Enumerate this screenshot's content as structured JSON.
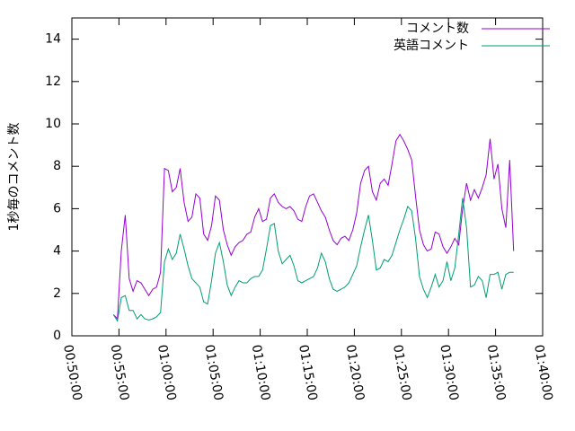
{
  "chart_data": {
    "type": "line",
    "ylabel": "1秒毎のコメント数",
    "x": [
      3265,
      3290,
      3315,
      3340,
      3365,
      3390,
      3415,
      3440,
      3465,
      3490,
      3515,
      3540,
      3565,
      3590,
      3615,
      3640,
      3665,
      3690,
      3715,
      3740,
      3765,
      3790,
      3815,
      3840,
      3865,
      3890,
      3915,
      3940,
      3965,
      3990,
      4015,
      4040,
      4065,
      4090,
      4115,
      4140,
      4165,
      4190,
      4215,
      4240,
      4265,
      4290,
      4315,
      4340,
      4365,
      4390,
      4415,
      4440,
      4465,
      4490,
      4515,
      4540,
      4565,
      4590,
      4615,
      4640,
      4665,
      4690,
      4715,
      4740,
      4765,
      4790,
      4815,
      4840,
      4865,
      4890,
      4915,
      4940,
      4965,
      4990,
      5015,
      5040,
      5065,
      5090,
      5115,
      5140,
      5165,
      5190,
      5215,
      5240,
      5265,
      5290,
      5315,
      5340,
      5365,
      5390,
      5415,
      5440,
      5465,
      5490,
      5515,
      5540,
      5565,
      5590,
      5615,
      5640,
      5665,
      5690,
      5715,
      5740,
      5765,
      5790,
      5815
    ],
    "series": [
      {
        "name": "コメント数",
        "color": "#9400d3",
        "values": [
          1.0,
          0.8,
          4.0,
          5.7,
          2.7,
          2.1,
          2.6,
          2.5,
          2.2,
          1.9,
          2.2,
          2.3,
          3.0,
          7.9,
          7.8,
          6.8,
          7.0,
          7.9,
          6.3,
          5.4,
          5.6,
          6.7,
          6.5,
          4.8,
          4.5,
          5.2,
          6.6,
          6.4,
          5.0,
          4.3,
          3.8,
          4.2,
          4.4,
          4.5,
          4.8,
          4.9,
          5.6,
          6.0,
          5.4,
          5.5,
          6.5,
          6.7,
          6.3,
          6.1,
          6.0,
          6.1,
          5.9,
          5.5,
          5.4,
          6.1,
          6.6,
          6.7,
          6.3,
          5.9,
          5.6,
          5.0,
          4.5,
          4.3,
          4.6,
          4.7,
          4.5,
          5.0,
          5.8,
          7.2,
          7.8,
          8.0,
          6.8,
          6.4,
          7.2,
          7.4,
          7.1,
          8.1,
          9.2,
          9.5,
          9.2,
          8.8,
          8.3,
          6.6,
          5.0,
          4.3,
          4.0,
          4.1,
          4.9,
          4.8,
          4.2,
          3.9,
          4.2,
          4.6,
          4.3,
          6.0,
          7.2,
          6.4,
          6.9,
          6.5,
          7.0,
          7.6,
          9.3,
          7.4,
          8.1,
          6.0,
          5.1,
          8.3,
          4.0
        ]
      },
      {
        "name": "英語コメント",
        "color": "#009e73",
        "values": [
          1.0,
          0.7,
          1.8,
          1.9,
          1.2,
          1.2,
          0.8,
          1.0,
          0.8,
          0.75,
          0.8,
          0.9,
          1.1,
          3.5,
          4.1,
          3.6,
          3.9,
          4.8,
          4.1,
          3.3,
          2.7,
          2.5,
          2.3,
          1.6,
          1.5,
          2.6,
          3.9,
          4.4,
          3.5,
          2.4,
          1.9,
          2.3,
          2.6,
          2.5,
          2.5,
          2.7,
          2.8,
          2.8,
          3.1,
          4.1,
          5.2,
          5.3,
          4.0,
          3.4,
          3.6,
          3.8,
          3.3,
          2.6,
          2.5,
          2.6,
          2.7,
          2.8,
          3.2,
          3.9,
          3.5,
          2.7,
          2.2,
          2.1,
          2.2,
          2.3,
          2.5,
          2.9,
          3.3,
          4.2,
          5.0,
          5.7,
          4.5,
          3.1,
          3.2,
          3.6,
          3.5,
          3.8,
          4.4,
          5.0,
          5.5,
          6.1,
          5.9,
          4.6,
          2.8,
          2.2,
          1.8,
          2.3,
          2.9,
          2.3,
          2.6,
          3.5,
          2.6,
          3.2,
          4.8,
          6.5,
          5.1,
          2.3,
          2.4,
          2.8,
          2.6,
          1.8,
          2.9,
          2.9,
          3.0,
          2.2,
          2.9,
          3.0,
          3.0
        ]
      }
    ],
    "xlim": [
      3000,
      6000
    ],
    "xticks": [
      {
        "value": 3000,
        "label": "00:50:00"
      },
      {
        "value": 3300,
        "label": "00:55:00"
      },
      {
        "value": 3600,
        "label": "01:00:00"
      },
      {
        "value": 3900,
        "label": "01:05:00"
      },
      {
        "value": 4200,
        "label": "01:10:00"
      },
      {
        "value": 4500,
        "label": "01:15:00"
      },
      {
        "value": 4800,
        "label": "01:20:00"
      },
      {
        "value": 5100,
        "label": "01:25:00"
      },
      {
        "value": 5400,
        "label": "01:30:00"
      },
      {
        "value": 5700,
        "label": "01:35:00"
      },
      {
        "value": 6000,
        "label": "01:40:00"
      }
    ],
    "ylim": [
      0,
      15
    ],
    "yticks": [
      0,
      2,
      4,
      6,
      8,
      10,
      12,
      14
    ],
    "grid": false,
    "legend": "top-right"
  }
}
